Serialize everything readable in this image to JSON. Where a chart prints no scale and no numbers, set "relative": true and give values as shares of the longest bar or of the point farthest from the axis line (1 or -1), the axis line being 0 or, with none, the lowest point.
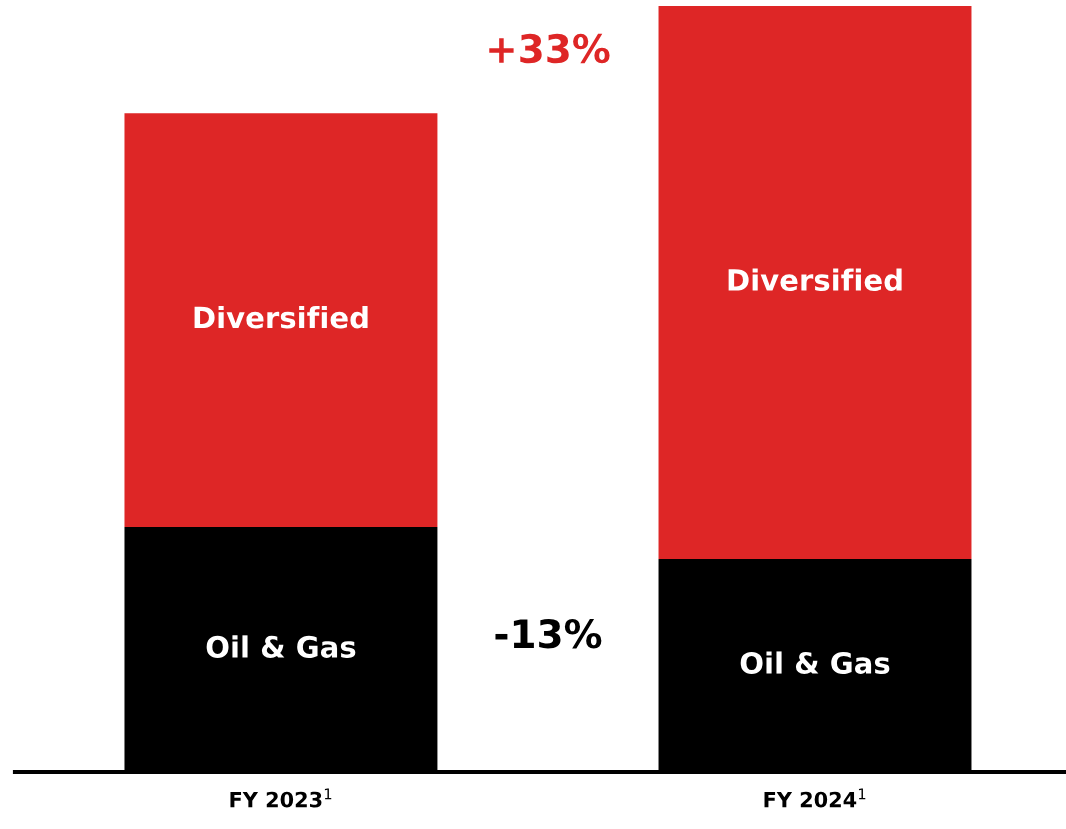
{
  "chart_data": {
    "type": "bar",
    "stacked": true,
    "relative": true,
    "categories": [
      "FY 2023$^{1}$",
      "FY 2024$^{1}$"
    ],
    "series": [
      {
        "name": "Oil & Gas",
        "color": "#000000",
        "values": [
          0.32,
          0.278
        ]
      },
      {
        "name": "Diversified",
        "color": "#de2626",
        "values": [
          0.54,
          0.722
        ]
      }
    ],
    "annotations": [
      "+33%",
      "-13%"
    ],
    "legend": false,
    "grid": false
  }
}
